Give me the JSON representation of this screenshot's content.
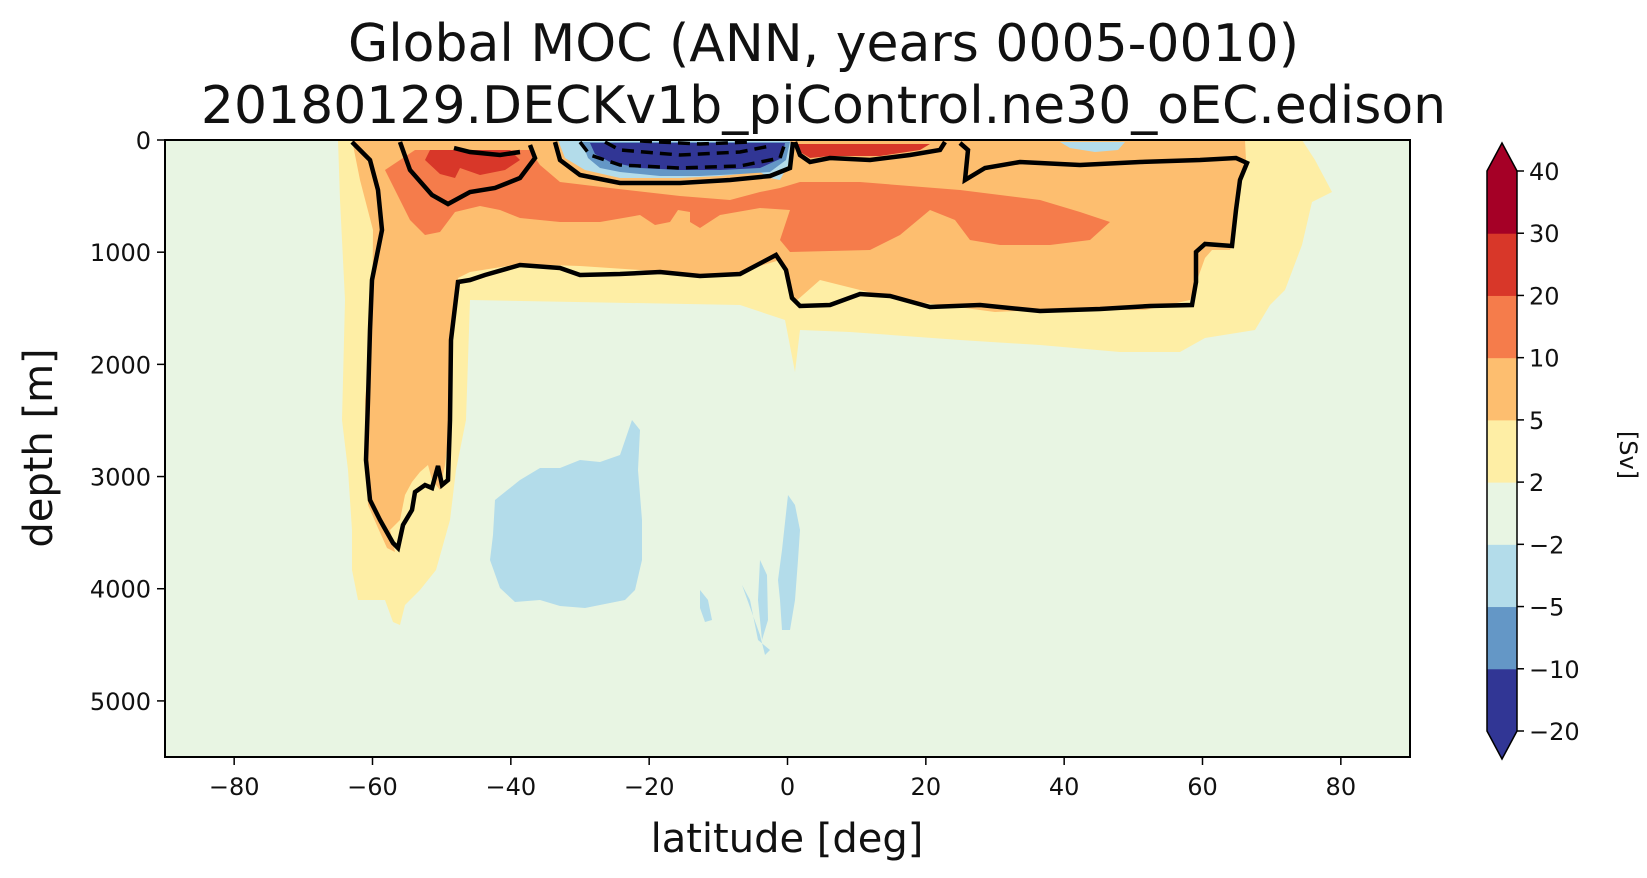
{
  "chart_data": {
    "type": "heatmap",
    "subtype": "filled-contour",
    "title": "Global MOC (ANN, years 0005-0010)",
    "subtitle": "20180129.DECKv1b_piControl.ne30_oEC.edison",
    "xlabel": "latitude [deg]",
    "ylabel": "depth [m]",
    "xlim": [
      -90,
      90
    ],
    "ylim": [
      5500,
      0
    ],
    "x_ticks": [
      -80,
      -60,
      -40,
      -20,
      0,
      20,
      40,
      60,
      80
    ],
    "x_tick_labels": [
      "−80",
      "−60",
      "−40",
      "−20",
      "0",
      "20",
      "40",
      "60",
      "80"
    ],
    "y_ticks": [
      0,
      1000,
      2000,
      3000,
      4000,
      5000
    ],
    "y_tick_labels": [
      "0",
      "1000",
      "2000",
      "3000",
      "4000",
      "5000"
    ],
    "colorbar": {
      "label": "[Sv]",
      "levels": [
        -20,
        -10,
        -5,
        -2,
        2,
        5,
        10,
        20,
        30,
        40
      ],
      "level_labels": [
        "−20",
        "−10",
        "−5",
        "−2",
        "2",
        "5",
        "10",
        "20",
        "30",
        "40"
      ],
      "colors": [
        "#313695",
        "#6497c6",
        "#b3dcea",
        "#e8f5e3",
        "#feeea5",
        "#fdbe6f",
        "#f57c4b",
        "#d83729",
        "#a50026"
      ],
      "extend": "both",
      "under_color": "#313695",
      "over_color": "#a50026"
    },
    "background_color": "#e8f5e3",
    "regions": [
      {
        "name": "streamfunction 2 to 5",
        "color": "#feeea5",
        "approx_extent": {
          "lat": [
            -64,
            79
          ],
          "depth": [
            0,
            4250
          ]
        }
      },
      {
        "name": "streamfunction 5 to 10",
        "color": "#fdbe6f",
        "approx_extent": {
          "lat": [
            -62,
            66
          ],
          "depth": [
            0,
            3650
          ]
        }
      },
      {
        "name": "streamfunction 10 to 20",
        "color": "#f57c4b",
        "approx_extent": {
          "lat": [
            -58,
            47
          ],
          "depth": [
            0,
            1000
          ]
        }
      },
      {
        "name": "streamfunction 20 to 30",
        "color": "#d83729",
        "approx_extent": {
          "lat": [
            -54,
            20
          ],
          "depth": [
            0,
            250
          ]
        }
      },
      {
        "name": "streamfunction -2 to -5 (near-surface)",
        "color": "#b3dcea",
        "approx_extent": {
          "lat": [
            -33,
            45
          ],
          "depth": [
            0,
            200
          ]
        }
      },
      {
        "name": "streamfunction below -5 (surface cell)",
        "color": "#313695",
        "approx_extent": {
          "lat": [
            -29,
            -3
          ],
          "depth": [
            0,
            280
          ]
        }
      },
      {
        "name": "streamfunction -2 to -5 (abyssal)",
        "color": "#b3dcea",
        "approx_extent": {
          "lat": [
            -42,
            -21
          ],
          "depth": [
            2550,
            4150
          ]
        }
      },
      {
        "name": "streamfunction -2 to -5 (deep equatorial)",
        "color": "#b3dcea",
        "approx_extent": {
          "lat": [
            -12,
            2
          ],
          "depth": [
            3250,
            4550
          ]
        }
      }
    ],
    "contour_lines": {
      "color": "#000000",
      "levels": [
        -10,
        5,
        20
      ],
      "negative_style": "dashed"
    },
    "grid": false
  }
}
